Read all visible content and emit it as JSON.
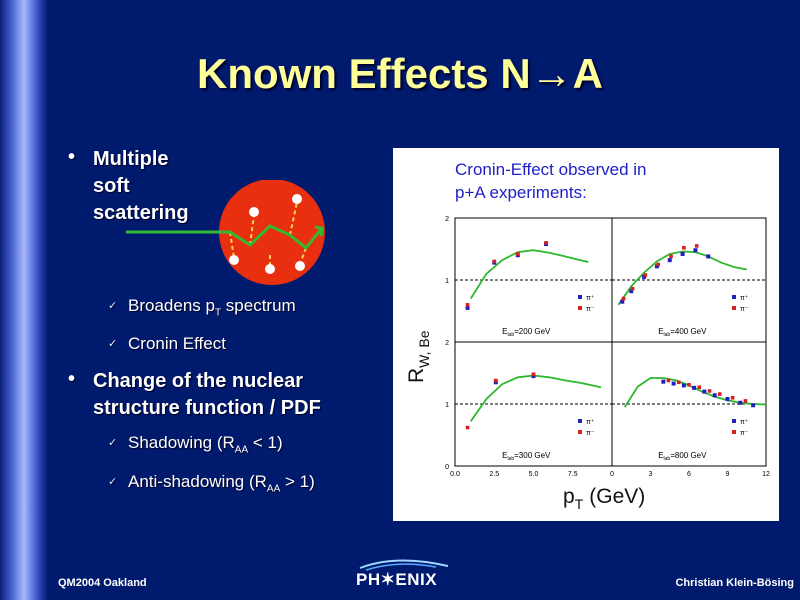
{
  "slide": {
    "title": "Known Effects N→A",
    "bullets": [
      {
        "text": "Multiple soft scattering"
      },
      {
        "text": "Change of the nuclear structure function / PDF"
      }
    ],
    "subs": [
      {
        "pre": "Broadens p",
        "subscript": "T",
        "post": " spectrum"
      },
      {
        "pre": "Cronin Effect",
        "subscript": "",
        "post": ""
      },
      {
        "pre": "Shadowing (R",
        "subscript": "AA",
        "post": " < 1)"
      },
      {
        "pre": "Anti-shadowing (R",
        "subscript": "AA",
        "post": " > 1)"
      }
    ],
    "bullet_glyph": "•",
    "sub_glyph": "✓"
  },
  "figure": {
    "caption_line1": "Cronin-Effect observed in",
    "caption_line2": "p+A experiments:",
    "ylabel_main": "R",
    "ylabel_sub": "W, Be",
    "xlabel_main": "p",
    "xlabel_sub": "T",
    "xlabel_unit": "(GeV)"
  },
  "chart_data": {
    "type": "scatter",
    "layout": "2x2 panels",
    "y_tick_labels": [
      "0",
      "1",
      "2"
    ],
    "x_tick_labels_left": [
      "0.0",
      "2.5",
      "5.0",
      "7.5"
    ],
    "x_tick_labels_right": [
      "0",
      "3",
      "6",
      "9",
      "12"
    ],
    "legend": [
      "π⁺",
      "π⁻"
    ],
    "series_colors": {
      "pi_plus": "#2020c0",
      "pi_minus": "#d82020",
      "fit": "#2eb82e"
    },
    "panels": [
      {
        "label": "E_lab=200 GeV",
        "label_main": "E",
        "label_sub": "lab",
        "label_post": "=200 GeV",
        "xlim": [
          0,
          10
        ],
        "ylim": [
          0,
          2
        ],
        "pi_plus": [
          [
            0.8,
            0.55
          ],
          [
            2.5,
            1.28
          ],
          [
            4.0,
            1.4
          ],
          [
            5.8,
            1.58
          ]
        ],
        "pi_minus": [
          [
            0.8,
            0.6
          ],
          [
            2.5,
            1.3
          ],
          [
            4.0,
            1.42
          ],
          [
            5.8,
            1.6
          ]
        ],
        "fit": [
          [
            1.0,
            0.7
          ],
          [
            2.0,
            1.1
          ],
          [
            3.0,
            1.32
          ],
          [
            4.0,
            1.45
          ],
          [
            5.0,
            1.48
          ],
          [
            6.0,
            1.44
          ],
          [
            7.0,
            1.38
          ],
          [
            8.0,
            1.32
          ],
          [
            8.5,
            1.29
          ]
        ]
      },
      {
        "label": "E_lab=400 GeV",
        "label_main": "E",
        "label_sub": "lab",
        "label_post": "=400 GeV",
        "xlim": [
          0,
          12
        ],
        "ylim": [
          0,
          2
        ],
        "pi_plus": [
          [
            0.8,
            0.65
          ],
          [
            1.5,
            0.82
          ],
          [
            2.5,
            1.05
          ],
          [
            3.5,
            1.22
          ],
          [
            4.5,
            1.32
          ],
          [
            5.5,
            1.42
          ],
          [
            6.5,
            1.48
          ],
          [
            7.5,
            1.38
          ]
        ],
        "pi_minus": [
          [
            0.9,
            0.7
          ],
          [
            1.6,
            0.86
          ],
          [
            2.6,
            1.08
          ],
          [
            3.6,
            1.25
          ],
          [
            4.6,
            1.38
          ],
          [
            5.6,
            1.52
          ],
          [
            6.6,
            1.55
          ]
        ],
        "fit": [
          [
            0.5,
            0.6
          ],
          [
            1.5,
            0.9
          ],
          [
            2.5,
            1.12
          ],
          [
            3.5,
            1.3
          ],
          [
            4.5,
            1.42
          ],
          [
            5.5,
            1.46
          ],
          [
            6.5,
            1.45
          ],
          [
            7.5,
            1.38
          ],
          [
            8.5,
            1.28
          ],
          [
            9.5,
            1.21
          ],
          [
            10.5,
            1.17
          ]
        ]
      },
      {
        "label": "E_lab=300 GeV",
        "label_main": "E",
        "label_sub": "lab",
        "label_post": "=300 GeV",
        "xlim": [
          0,
          10
        ],
        "ylim": [
          0,
          2
        ],
        "pi_plus": [
          [
            2.6,
            1.35
          ],
          [
            5.0,
            1.45
          ]
        ],
        "pi_minus": [
          [
            0.8,
            0.62
          ],
          [
            2.6,
            1.38
          ],
          [
            5.0,
            1.48
          ]
        ],
        "fit": [
          [
            1.0,
            0.72
          ],
          [
            2.0,
            1.08
          ],
          [
            3.0,
            1.32
          ],
          [
            4.0,
            1.43
          ],
          [
            5.0,
            1.46
          ],
          [
            6.0,
            1.43
          ],
          [
            7.0,
            1.38
          ],
          [
            8.0,
            1.34
          ],
          [
            9.3,
            1.27
          ]
        ]
      },
      {
        "label": "E_lab=800 GeV",
        "label_main": "E",
        "label_sub": "lab",
        "label_post": "=800 GeV",
        "xlim": [
          0,
          12
        ],
        "ylim": [
          0,
          2
        ],
        "pi_plus": [
          [
            4.0,
            1.36
          ],
          [
            4.8,
            1.33
          ],
          [
            5.6,
            1.3
          ],
          [
            6.4,
            1.26
          ],
          [
            7.2,
            1.2
          ],
          [
            8.0,
            1.14
          ],
          [
            9.0,
            1.08
          ],
          [
            10.0,
            1.02
          ],
          [
            11.0,
            0.98
          ]
        ],
        "pi_minus": [
          [
            4.4,
            1.38
          ],
          [
            5.2,
            1.35
          ],
          [
            6.0,
            1.31
          ],
          [
            6.8,
            1.27
          ],
          [
            7.6,
            1.21
          ],
          [
            8.4,
            1.16
          ],
          [
            9.4,
            1.1
          ],
          [
            10.4,
            1.05
          ]
        ],
        "fit": [
          [
            1.0,
            0.95
          ],
          [
            2.0,
            1.28
          ],
          [
            3.0,
            1.42
          ],
          [
            4.0,
            1.42
          ],
          [
            5.0,
            1.38
          ],
          [
            6.0,
            1.3
          ],
          [
            7.0,
            1.2
          ],
          [
            8.0,
            1.12
          ],
          [
            9.0,
            1.06
          ],
          [
            10.0,
            1.02
          ],
          [
            11.0,
            1.0
          ],
          [
            12.0,
            0.99
          ]
        ]
      }
    ]
  },
  "footer": {
    "left": "QM2004 Oakland",
    "right": "Christian Klein-Bösing",
    "logo_text": "PH✶ENIX"
  },
  "colors": {
    "background": "#001a6e",
    "title": "#ffff99",
    "caption": "#2020c8",
    "nucleus": "#e83010"
  }
}
